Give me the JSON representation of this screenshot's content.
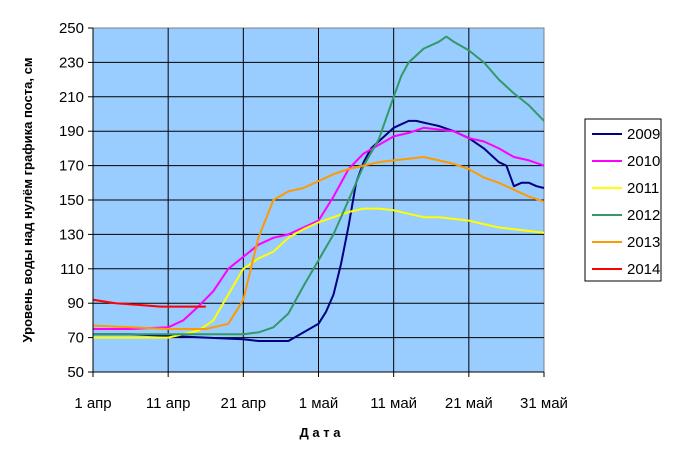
{
  "chart_data": {
    "type": "line",
    "title": "",
    "xlabel": "Д а т а",
    "ylabel": "Уровень воды над нулём графика поста, см",
    "x_ticks": [
      "1 апр",
      "11 апр",
      "21 апр",
      "1 май",
      "11 май",
      "21 май",
      "31 май"
    ],
    "x_tick_days": [
      0,
      10,
      20,
      30,
      40,
      50,
      60
    ],
    "ylim": [
      50,
      250
    ],
    "y_ticks": [
      "50",
      "70",
      "90",
      "110",
      "130",
      "150",
      "170",
      "190",
      "210",
      "230",
      "250"
    ],
    "y_tick_values": [
      50,
      70,
      90,
      110,
      130,
      150,
      170,
      190,
      210,
      230,
      250
    ],
    "grid": true,
    "legend_position": "right",
    "background_color": "#99ccff",
    "series": [
      {
        "name": "2009",
        "color": "#000080",
        "x": [
          0,
          5,
          10,
          15,
          20,
          22,
          24,
          26,
          28,
          30,
          31,
          32,
          33,
          34,
          35,
          36,
          37,
          38,
          39,
          40,
          41,
          42,
          43,
          44,
          45,
          46,
          48,
          50,
          52,
          54,
          55,
          56,
          57,
          58,
          59,
          60
        ],
        "values": [
          72,
          72,
          71,
          70,
          69,
          68,
          68,
          68,
          73,
          78,
          85,
          95,
          113,
          135,
          160,
          172,
          180,
          184,
          188,
          192,
          194,
          196,
          196,
          195,
          194,
          193,
          190,
          186,
          180,
          172,
          170,
          158,
          160,
          160,
          158,
          157
        ]
      },
      {
        "name": "2010",
        "color": "#ff00ff",
        "x": [
          0,
          5,
          10,
          12,
          14,
          16,
          18,
          20,
          22,
          24,
          26,
          28,
          30,
          32,
          34,
          36,
          38,
          40,
          42,
          44,
          46,
          48,
          50,
          52,
          54,
          56,
          58,
          60
        ],
        "values": [
          75,
          75,
          76,
          80,
          88,
          97,
          110,
          117,
          124,
          128,
          130,
          134,
          138,
          152,
          168,
          177,
          182,
          187,
          189,
          192,
          191,
          190,
          186,
          184,
          180,
          175,
          173,
          170
        ]
      },
      {
        "name": "2011",
        "color": "#ffff00",
        "x": [
          0,
          5,
          10,
          14,
          16,
          18,
          20,
          22,
          24,
          26,
          28,
          30,
          32,
          34,
          36,
          38,
          40,
          42,
          44,
          46,
          48,
          50,
          52,
          54,
          56,
          58,
          60
        ],
        "values": [
          70,
          70,
          70,
          74,
          80,
          95,
          110,
          116,
          120,
          128,
          133,
          137,
          140,
          143,
          145,
          145,
          144,
          142,
          140,
          140,
          139,
          138,
          136,
          134,
          133,
          132,
          131
        ]
      },
      {
        "name": "2012",
        "color": "#339966",
        "x": [
          0,
          5,
          10,
          15,
          20,
          22,
          24,
          26,
          28,
          30,
          32,
          34,
          36,
          38,
          40,
          41,
          42,
          44,
          46,
          47,
          48,
          50,
          52,
          54,
          56,
          58,
          60
        ],
        "values": [
          72,
          72,
          72,
          72,
          72,
          73,
          76,
          84,
          100,
          115,
          130,
          150,
          170,
          185,
          210,
          222,
          230,
          238,
          242,
          245,
          242,
          237,
          230,
          220,
          212,
          205,
          196
        ]
      },
      {
        "name": "2013",
        "color": "#ff9900",
        "x": [
          0,
          5,
          10,
          15,
          18,
          20,
          22,
          24,
          26,
          28,
          30,
          32,
          34,
          36,
          38,
          40,
          42,
          44,
          46,
          48,
          50,
          52,
          54,
          56,
          58,
          60
        ],
        "values": [
          77,
          76,
          75,
          75,
          78,
          92,
          128,
          150,
          155,
          157,
          161,
          165,
          168,
          170,
          172,
          173,
          174,
          175,
          173,
          171,
          168,
          163,
          160,
          156,
          152,
          149
        ]
      },
      {
        "name": "2014",
        "color": "#ff0000",
        "x": [
          0,
          3,
          6,
          9,
          12,
          15
        ],
        "values": [
          92,
          90,
          89,
          88,
          88,
          88
        ]
      }
    ]
  }
}
